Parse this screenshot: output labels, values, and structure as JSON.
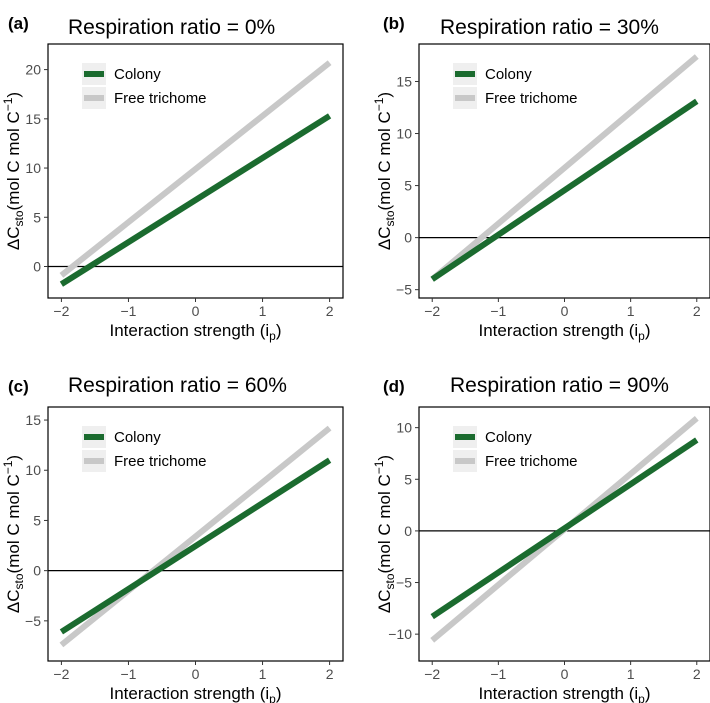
{
  "colors": {
    "colony": "#1b6b2f",
    "free_trichome": "#c8c8c8",
    "legend_key_bg": "#efefef",
    "zero_line": "#000000"
  },
  "legend_entries": [
    "Colony",
    "Free trichome"
  ],
  "axes_text": {
    "xlabel_main": "Interaction strength (i",
    "xlabel_sub": "p",
    "xlabel_close": ")",
    "ylabel_delta": "ΔC",
    "ylabel_sub": "sto",
    "ylabel_unit": "(mol C mol C",
    "ylabel_sup": "−1",
    "ylabel_close": ")"
  },
  "chart_data": [
    {
      "type": "line",
      "label": "(a)",
      "title": "Respiration ratio = 0%",
      "xlim": [
        -2.2,
        2.2
      ],
      "ylim": [
        -3.2,
        22.6
      ],
      "xticks": [
        -2,
        -1,
        0,
        1,
        2
      ],
      "xtick_labels": [
        "−2",
        "−1",
        "0",
        "1",
        "2"
      ],
      "yticks": [
        0,
        5,
        10,
        15,
        20
      ],
      "ytick_labels": [
        "0",
        "5",
        "10",
        "15",
        "20"
      ],
      "hline": 0,
      "legend_position": "top-left",
      "series": [
        {
          "name": "Colony",
          "x": [
            -2,
            2
          ],
          "y": [
            -1.8,
            15.3
          ]
        },
        {
          "name": "Free trichome",
          "x": [
            -2,
            2
          ],
          "y": [
            -0.9,
            20.7
          ]
        }
      ]
    },
    {
      "type": "line",
      "label": "(b)",
      "title": "Respiration ratio = 30%",
      "xlim": [
        -2.2,
        2.2
      ],
      "ylim": [
        -5.8,
        18.6
      ],
      "xticks": [
        -2,
        -1,
        0,
        1,
        2
      ],
      "xtick_labels": [
        "−2",
        "−1",
        "0",
        "1",
        "2"
      ],
      "yticks": [
        -5,
        0,
        5,
        10,
        15
      ],
      "ytick_labels": [
        "−5",
        "0",
        "5",
        "10",
        "15"
      ],
      "hline": 0,
      "legend_position": "top-left",
      "series": [
        {
          "name": "Colony",
          "x": [
            -2,
            2
          ],
          "y": [
            -4.0,
            13.1
          ]
        },
        {
          "name": "Free trichome",
          "x": [
            -2,
            2
          ],
          "y": [
            -4.0,
            17.4
          ]
        }
      ]
    },
    {
      "type": "line",
      "label": "(c)",
      "title": "Respiration ratio = 60%",
      "xlim": [
        -2.2,
        2.2
      ],
      "ylim": [
        -9.0,
        16.3
      ],
      "xticks": [
        -2,
        -1,
        0,
        1,
        2
      ],
      "xtick_labels": [
        "−2",
        "−1",
        "0",
        "1",
        "2"
      ],
      "yticks": [
        -5,
        0,
        5,
        10,
        15
      ],
      "ytick_labels": [
        "−5",
        "0",
        "5",
        "10",
        "15"
      ],
      "hline": 0,
      "legend_position": "top-left",
      "series": [
        {
          "name": "Colony",
          "x": [
            -2,
            2
          ],
          "y": [
            -6.1,
            11.0
          ]
        },
        {
          "name": "Free trichome",
          "x": [
            -2,
            2
          ],
          "y": [
            -7.4,
            14.2
          ]
        }
      ]
    },
    {
      "type": "line",
      "label": "(d)",
      "title": "Respiration ratio = 90%",
      "xlim": [
        -2.2,
        2.2
      ],
      "ylim": [
        -12.6,
        12.0
      ],
      "xticks": [
        -2,
        -1,
        0,
        1,
        2
      ],
      "xtick_labels": [
        "−2",
        "−1",
        "0",
        "1",
        "2"
      ],
      "yticks": [
        -10,
        -5,
        0,
        5,
        10
      ],
      "ytick_labels": [
        "−10",
        "−5",
        "0",
        "5",
        "10"
      ],
      "hline": 0,
      "legend_position": "top-left",
      "series": [
        {
          "name": "Colony",
          "x": [
            -2,
            2
          ],
          "y": [
            -8.3,
            8.8
          ]
        },
        {
          "name": "Free trichome",
          "x": [
            -2,
            2
          ],
          "y": [
            -10.6,
            10.9
          ]
        }
      ]
    }
  ]
}
